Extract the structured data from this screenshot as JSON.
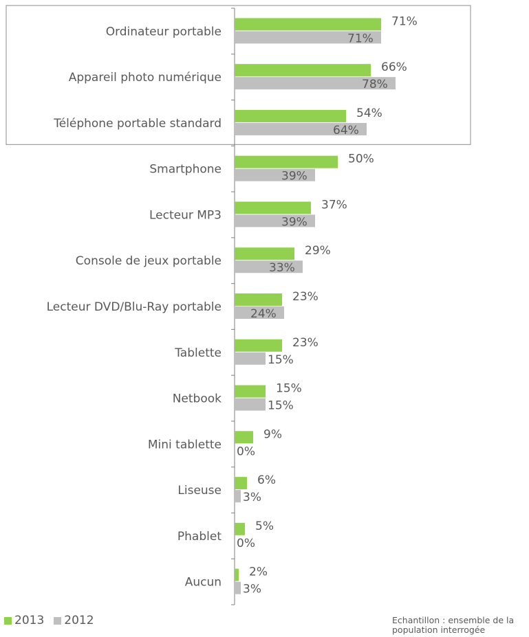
{
  "chart_data": {
    "type": "bar",
    "orientation": "horizontal",
    "categories": [
      "Ordinateur portable",
      "Appareil photo numérique",
      "Téléphone portable standard",
      "Smartphone",
      "Lecteur MP3",
      "Console de jeux portable",
      "Lecteur DVD/Blu-Ray portable",
      "Tablette",
      "Netbook",
      "Mini tablette",
      "Liseuse",
      "Phablet",
      "Aucun"
    ],
    "series": [
      {
        "name": "2013",
        "color": "#92d050",
        "values": [
          71,
          66,
          54,
          50,
          37,
          29,
          23,
          23,
          15,
          9,
          6,
          5,
          2
        ]
      },
      {
        "name": "2012",
        "color": "#bfbfbf",
        "values": [
          71,
          78,
          64,
          39,
          39,
          33,
          24,
          15,
          15,
          0,
          3,
          0,
          3
        ]
      }
    ],
    "value_suffix": "%",
    "xlim": [
      0,
      100
    ],
    "highlighted_categories": [
      "Ordinateur portable",
      "Appareil photo numérique",
      "Téléphone portable standard"
    ],
    "legend_position": "bottom-left",
    "grid": false,
    "annotation": "Echantillon : ensemble de la population interrogée"
  }
}
